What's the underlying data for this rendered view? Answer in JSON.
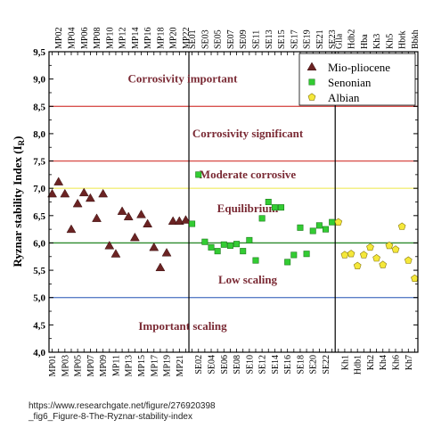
{
  "chart_data": {
    "type": "scatter",
    "ylabel": "Ryznar stability Index (I",
    "ylabel_subscript": "R",
    "ylabel_close": ")",
    "ylim": [
      4.0,
      9.5
    ],
    "yticks": [
      "4,0",
      "4,5",
      "5,0",
      "5,5",
      "6,0",
      "6,5",
      "7,0",
      "7,5",
      "8,0",
      "8,5",
      "9,0",
      "9,5"
    ],
    "categories": [
      "MP01",
      "MP02",
      "MP03",
      "MP04",
      "MP05",
      "MP06",
      "MP07",
      "MP08",
      "MP09",
      "MP10",
      "MP11",
      "MP12",
      "MP13",
      "MP14",
      "MP15",
      "MP16",
      "MP17",
      "MP18",
      "MP19",
      "MP20",
      "MP21",
      "MP22",
      "SE01",
      "SE02",
      "SE03",
      "SE04",
      "SE05",
      "SE06",
      "SE07",
      "SE08",
      "SE09",
      "SE10",
      "SE11",
      "SE12",
      "SE13",
      "SE14",
      "SE15",
      "SE16",
      "SE17",
      "SE18",
      "SE19",
      "SE20",
      "SE21",
      "SE22",
      "SE23",
      "Glla",
      "Kh1",
      "Hdb2",
      "Hdb1",
      "Hba",
      "Kh2",
      "Kh3",
      "Kh4",
      "Kh5",
      "Kh6",
      "Hbrk",
      "Kh7",
      "Bbkh"
    ],
    "top_labels": [
      "MP02",
      "MP04",
      "MP06",
      "MP08",
      "MP10",
      "MP12",
      "MP14",
      "MP16",
      "MP18",
      "MP20",
      "MP22",
      "SE01",
      "SE03",
      "SE05",
      "SE07",
      "SE09",
      "SE11",
      "SE13",
      "SE15",
      "SE17",
      "SE19",
      "SE21",
      "SE23",
      "Glla",
      "Hdb2",
      "Hba",
      "Kh3",
      "Kh5",
      "Hbrk",
      "Bbkh"
    ],
    "bottom_labels": [
      "MP01",
      "MP03",
      "MP05",
      "MP07",
      "MP09",
      "MP11",
      "MP13",
      "MP15",
      "MP17",
      "MP19",
      "MP21",
      "SE02",
      "SE04",
      "SE06",
      "SE08",
      "SE10",
      "SE12",
      "SE14",
      "SE16",
      "SE18",
      "SE20",
      "SE22",
      "Kh1",
      "Hdb1",
      "Kh2",
      "Kh4",
      "Kh6",
      "Kh7"
    ],
    "series": [
      {
        "name": "Mio-pliocene",
        "marker": "triangle",
        "color": "#6b2323",
        "points": [
          [
            "MP01",
            6.9
          ],
          [
            "MP02",
            7.12
          ],
          [
            "MP03",
            6.9
          ],
          [
            "MP04",
            6.25
          ],
          [
            "MP05",
            6.72
          ],
          [
            "MP06",
            6.92
          ],
          [
            "MP07",
            6.82
          ],
          [
            "MP08",
            6.45
          ],
          [
            "MP09",
            6.9
          ],
          [
            "MP10",
            5.95
          ],
          [
            "MP11",
            5.8
          ],
          [
            "MP12",
            6.58
          ],
          [
            "MP13",
            6.48
          ],
          [
            "MP14",
            6.1
          ],
          [
            "MP15",
            6.52
          ],
          [
            "MP16",
            6.35
          ],
          [
            "MP17",
            5.92
          ],
          [
            "MP18",
            5.55
          ],
          [
            "MP19",
            5.82
          ],
          [
            "MP20",
            6.4
          ],
          [
            "MP21",
            6.4
          ],
          [
            "MP22",
            6.42
          ]
        ]
      },
      {
        "name": "Senonian",
        "marker": "square",
        "color": "#33cc33",
        "points": [
          [
            "SE01",
            6.35
          ],
          [
            "SE02",
            7.25
          ],
          [
            "SE03",
            6.02
          ],
          [
            "SE04",
            5.92
          ],
          [
            "SE05",
            5.85
          ],
          [
            "SE06",
            5.97
          ],
          [
            "SE07",
            5.95
          ],
          [
            "SE08",
            5.98
          ],
          [
            "SE09",
            5.85
          ],
          [
            "SE10",
            6.05
          ],
          [
            "SE11",
            5.68
          ],
          [
            "SE12",
            6.45
          ],
          [
            "SE13",
            6.75
          ],
          [
            "SE14",
            6.65
          ],
          [
            "SE15",
            6.65
          ],
          [
            "SE16",
            5.65
          ],
          [
            "SE17",
            5.78
          ],
          [
            "SE18",
            6.28
          ],
          [
            "SE19",
            5.8
          ],
          [
            "SE20",
            6.22
          ],
          [
            "SE21",
            6.32
          ],
          [
            "SE22",
            6.25
          ],
          [
            "SE23",
            6.38
          ]
        ]
      },
      {
        "name": "Albian",
        "marker": "pentagon",
        "color": "#f5e83a",
        "points": [
          [
            "Glla",
            6.38
          ],
          [
            "Kh1",
            5.78
          ],
          [
            "Hdb2",
            5.8
          ],
          [
            "Hdb1",
            5.58
          ],
          [
            "Hba",
            5.78
          ],
          [
            "Kh2",
            5.92
          ],
          [
            "Kh3",
            5.72
          ],
          [
            "Kh4",
            5.6
          ],
          [
            "Kh5",
            5.95
          ],
          [
            "Kh6",
            5.88
          ],
          [
            "Hbrk",
            6.3
          ],
          [
            "Kh7",
            5.68
          ],
          [
            "Bbkh",
            5.35
          ]
        ]
      }
    ],
    "reference_lines": [
      {
        "y": 8.5,
        "color": "#d9534f"
      },
      {
        "y": 7.5,
        "color": "#d9534f"
      },
      {
        "y": 7.0,
        "color": "#f2ee7a"
      },
      {
        "y": 6.0,
        "color": "#2e8b2e"
      },
      {
        "y": 5.0,
        "color": "#5b7fc7"
      }
    ],
    "zones": [
      {
        "label": "Corrosivity important",
        "y": 9.0
      },
      {
        "label": "Corrosivity significant",
        "y": 8.0
      },
      {
        "label": "Moderate corrosive",
        "y": 7.25
      },
      {
        "label": "Equilibrium",
        "y": 6.63
      },
      {
        "label": "Low scaling",
        "y": 5.32
      },
      {
        "label": "Important scaling",
        "y": 4.47
      }
    ],
    "group_dividers_after": [
      "MP22",
      "SE23"
    ],
    "legend": {
      "placement": "top-right"
    }
  },
  "caption": {
    "line1": "https://www.researchgate.net/figure/276920398",
    "line2": "_fig6_Figure-8-The-Ryznar-stability-index"
  }
}
